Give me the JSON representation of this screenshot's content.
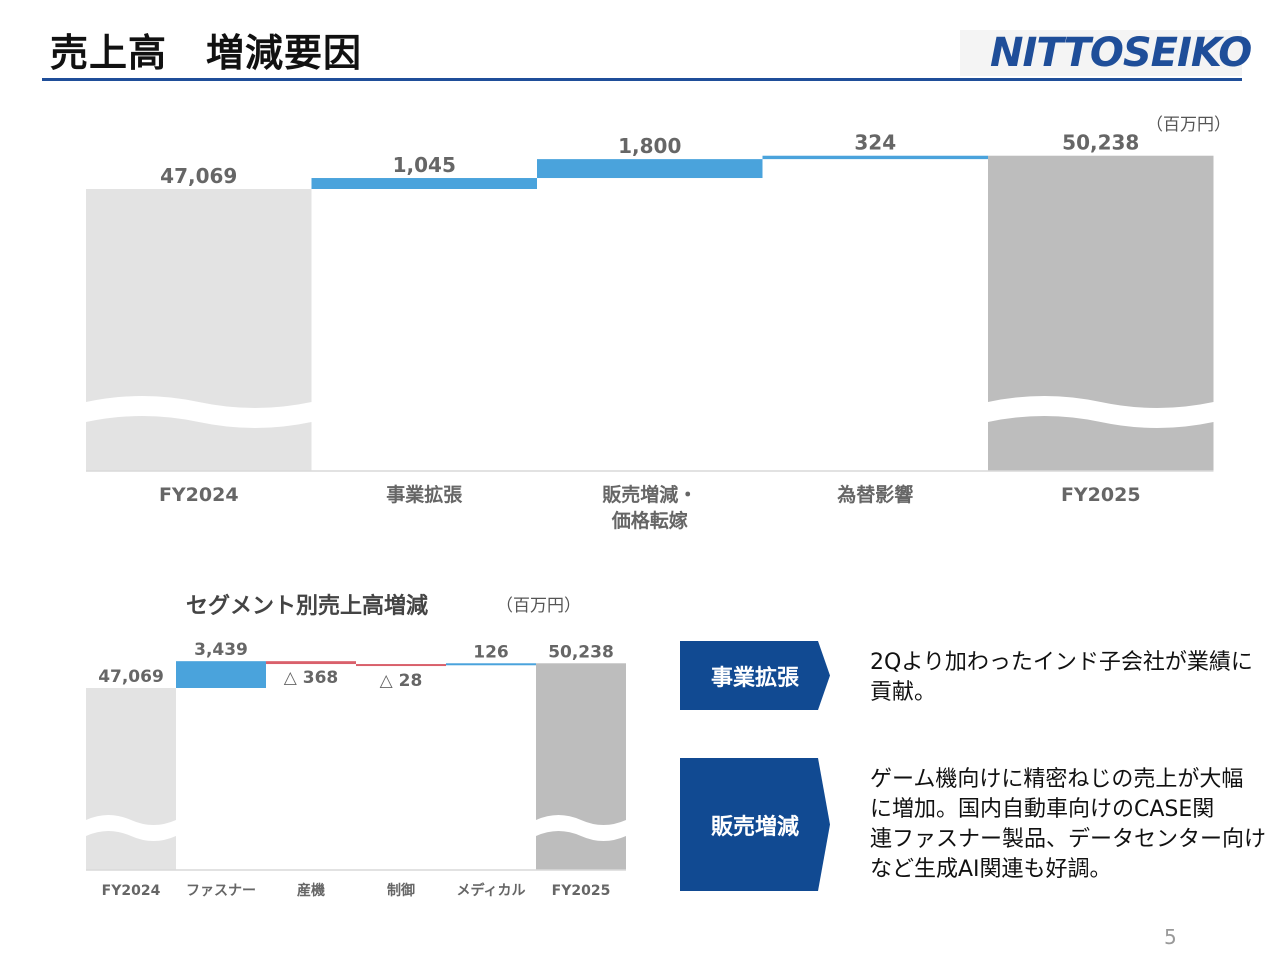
{
  "header": {
    "title": "売上高　増減要因",
    "logo_text": "NITTOSEIKO"
  },
  "colors": {
    "accent": "#1f4e99",
    "increase": "#4aa3dc",
    "decrease": "#d9606b",
    "start_bar": "#e3e3e3",
    "end_bar": "#bdbdbd"
  },
  "main_chart": {
    "unit": "（百万円）"
  },
  "segment_chart": {
    "title": "セグメント別売上高増減",
    "unit": "（百万円）"
  },
  "chart_data": [
    {
      "type": "waterfall",
      "categories": [
        "FY2024",
        "事業拡張",
        "販売増減・\n価格転嫁",
        "為替影響",
        "FY2025"
      ],
      "values": [
        47069,
        1045,
        1800,
        324,
        50238
      ],
      "labels": [
        "47,069",
        "1,045",
        "1,800",
        "324",
        "50,238"
      ],
      "kinds": [
        "total",
        "delta",
        "delta",
        "delta",
        "total"
      ],
      "axis_break": true
    },
    {
      "type": "waterfall",
      "title": "セグメント別売上高増減",
      "categories": [
        "FY2024",
        "ファスナー",
        "産機",
        "制御",
        "メディカル",
        "FY2025"
      ],
      "values": [
        47069,
        3439,
        -368,
        -28,
        126,
        50238
      ],
      "labels": [
        "47,069",
        "3,439",
        "△ 368",
        "△ 28",
        "126",
        "50,238"
      ],
      "kinds": [
        "total",
        "delta",
        "delta",
        "delta",
        "delta",
        "total"
      ],
      "axis_break": true
    }
  ],
  "callouts": [
    {
      "label": "事業拡張",
      "text": [
        "2Qより加わったインド子会社が業績に",
        "貢献。"
      ]
    },
    {
      "label": "販売増減",
      "text": [
        "ゲーム機向けに精密ねじの売上が大幅",
        "に増加。国内自動車向けのCASE関",
        "連ファスナー製品、データセンター向け",
        "など生成AI関連も好調。"
      ]
    }
  ],
  "footer": {
    "page_number": "5"
  }
}
